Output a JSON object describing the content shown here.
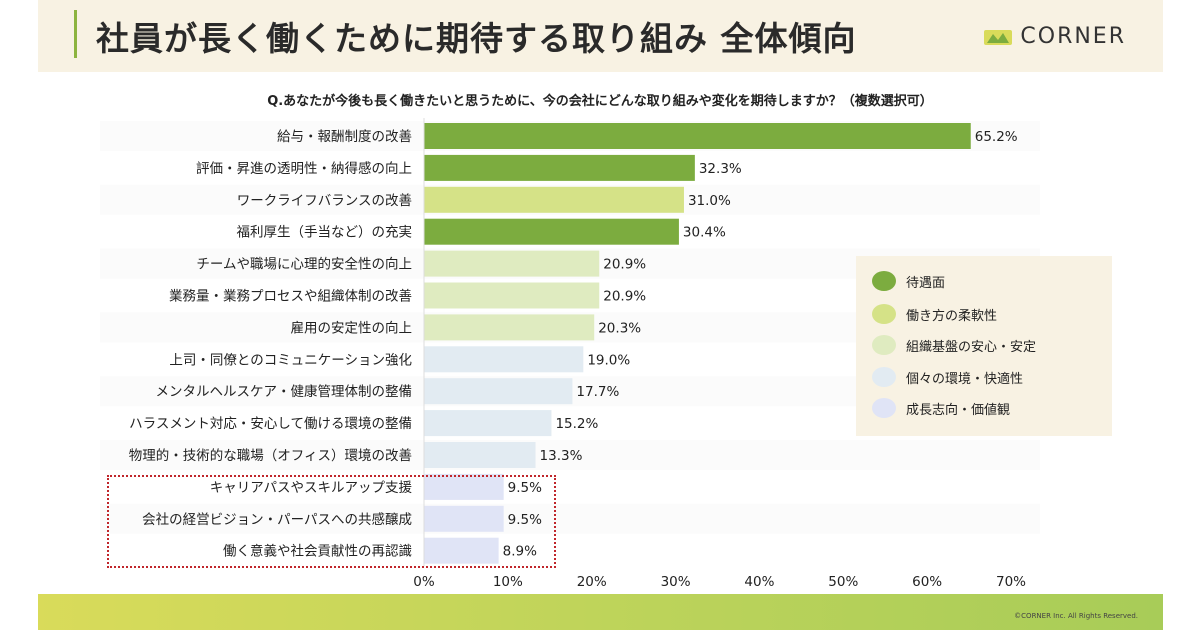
{
  "header": {
    "title": "社員が長く働くために期待する取り組み 全体傾向",
    "brand": "CORNER"
  },
  "question": "Q.あなたが今後も長く働きたいと思うために、今の会社にどんな取り組みや変化を期待しますか？（複数選択可）",
  "legend": [
    {
      "label": "待遇面",
      "color": "#7cac3f"
    },
    {
      "label": "働き方の柔軟性",
      "color": "#d5e287"
    },
    {
      "label": "組織基盤の安心・安定",
      "color": "#dfebc0"
    },
    {
      "label": "個々の環境・快適性",
      "color": "#e2ebf2"
    },
    {
      "label": "成長志向・価値観",
      "color": "#e0e4f6"
    }
  ],
  "footer": {
    "copyright": "©CORNER Inc. All Rights Reserved."
  },
  "chart_data": {
    "type": "bar",
    "orientation": "horizontal",
    "categories": [
      "給与・報酬制度の改善",
      "評価・昇進の透明性・納得感の向上",
      "ワークライフバランスの改善",
      "福利厚生（手当など）の充実",
      "チームや職場に心理的安全性の向上",
      "業務量・業務プロセスや組織体制の改善",
      "雇用の安定性の向上",
      "上司・同僚とのコミュニケーション強化",
      "メンタルヘルスケア・健康管理体制の整備",
      "ハラスメント対応・安心して働ける環境の整備",
      "物理的・技術的な職場（オフィス）環境の改善",
      "キャリアパスやスキルアップ支援",
      "会社の経営ビジョン・パーパスへの共感醸成",
      "働く意義や社会貢献性の再認識"
    ],
    "values": [
      65.2,
      32.3,
      31.0,
      30.4,
      20.9,
      20.9,
      20.3,
      19.0,
      17.7,
      15.2,
      13.3,
      9.5,
      9.5,
      8.9
    ],
    "value_labels": [
      "65.2%",
      "32.3%",
      "31.0%",
      "30.4%",
      "20.9%",
      "20.9%",
      "20.3%",
      "19.0%",
      "17.7%",
      "15.2%",
      "13.3%",
      "9.5%",
      "9.5%",
      "8.9%"
    ],
    "groups": [
      "待遇面",
      "待遇面",
      "働き方の柔軟性",
      "待遇面",
      "組織基盤の安心・安定",
      "組織基盤の安心・安定",
      "組織基盤の安心・安定",
      "個々の環境・快適性",
      "個々の環境・快適性",
      "個々の環境・快適性",
      "個々の環境・快適性",
      "成長志向・価値観",
      "成長志向・価値観",
      "成長志向・価値観"
    ],
    "xlim": [
      0,
      70
    ],
    "x_ticks": [
      "0%",
      "10%",
      "20%",
      "30%",
      "40%",
      "50%",
      "60%",
      "70%"
    ],
    "highlighted_categories": [
      "キャリアパスやスキルアップ支援",
      "会社の経営ビジョン・パーパスへの共感醸成",
      "働く意義や社会貢献性の再認識"
    ],
    "grid": false,
    "legend_position": "right"
  }
}
